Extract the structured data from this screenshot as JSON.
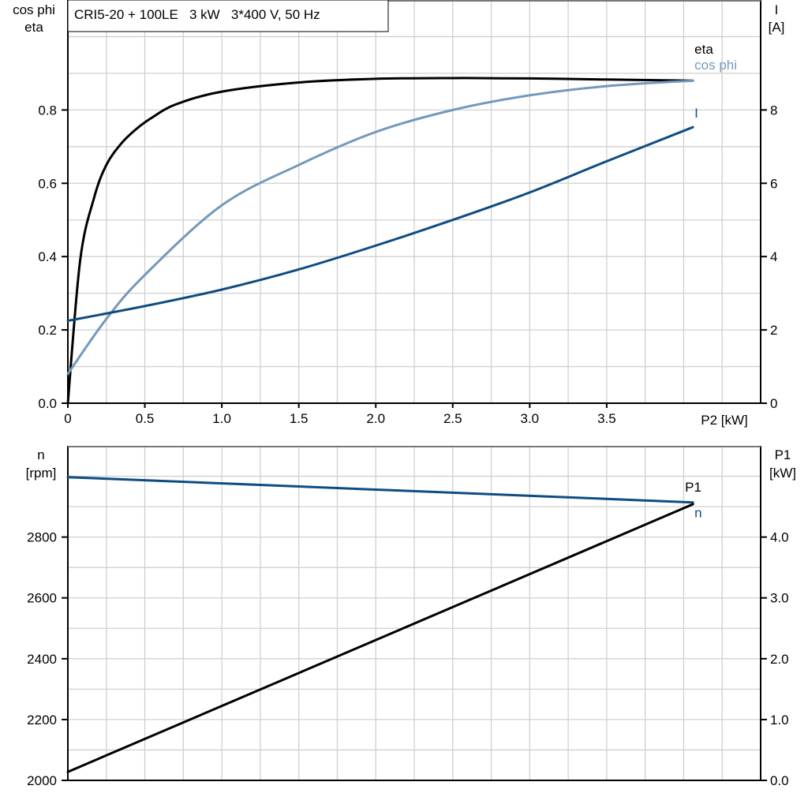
{
  "chart_data": [
    {
      "type": "line",
      "title": "CRI5-20 + 100LE   3 kW   3*400 V, 50 Hz",
      "xlabel": "P2 [kW]",
      "ylabel_left": [
        "cos phi",
        "eta"
      ],
      "ylabel_right": [
        "I",
        "[A]"
      ],
      "xlim": [
        0,
        4.5
      ],
      "ylim_left": [
        0,
        1.1
      ],
      "ylim_right": [
        0,
        11
      ],
      "xticks": [
        "0",
        "0.5",
        "1.0",
        "1.5",
        "2.0",
        "2.5",
        "3.0",
        "3.5"
      ],
      "yticks_left": [
        "0.0",
        "0.2",
        "0.4",
        "0.6",
        "0.8"
      ],
      "yticks_right": [
        "0",
        "2",
        "4",
        "6",
        "8"
      ],
      "grid": true,
      "series": [
        {
          "name": "eta",
          "axis": "left",
          "color": "#000000",
          "x": [
            0,
            0.08,
            0.17,
            0.25,
            0.35,
            0.45,
            0.55,
            0.7,
            1.0,
            1.5,
            2.0,
            2.5,
            3.0,
            3.5,
            4.06
          ],
          "y": [
            0,
            0.39,
            0.56,
            0.65,
            0.71,
            0.75,
            0.78,
            0.815,
            0.85,
            0.875,
            0.885,
            0.887,
            0.886,
            0.883,
            0.88
          ]
        },
        {
          "name": "cos phi",
          "axis": "left",
          "color": "#7399bb",
          "x": [
            0,
            0.25,
            0.5,
            1.0,
            1.5,
            2.0,
            2.5,
            3.0,
            3.5,
            4.06
          ],
          "y": [
            0.08,
            0.23,
            0.35,
            0.54,
            0.65,
            0.74,
            0.8,
            0.84,
            0.865,
            0.88
          ]
        },
        {
          "name": "I",
          "axis": "right",
          "color": "#0f4c81",
          "x": [
            0,
            0.5,
            1.0,
            1.5,
            2.0,
            2.5,
            3.0,
            3.5,
            4.06
          ],
          "y": [
            2.25,
            2.65,
            3.1,
            3.65,
            4.3,
            5.0,
            5.75,
            6.6,
            7.53
          ]
        }
      ]
    },
    {
      "type": "line",
      "xlim": [
        0,
        4.5
      ],
      "ylabel_left": [
        "n",
        "[rpm]"
      ],
      "ylabel_right": [
        "P1",
        "[kW]"
      ],
      "ylim_left": [
        2000,
        3100
      ],
      "ylim_right": [
        0,
        5.5
      ],
      "yticks_left": [
        "2000",
        "2200",
        "2400",
        "2600",
        "2800"
      ],
      "yticks_right": [
        "0.0",
        "1.0",
        "2.0",
        "3.0",
        "4.0"
      ],
      "grid": true,
      "series": [
        {
          "name": "n",
          "axis": "left",
          "color": "#0f4c81",
          "x": [
            0,
            4.06
          ],
          "y": [
            2997,
            2914
          ]
        },
        {
          "name": "P1",
          "axis": "right",
          "color": "#000000",
          "x": [
            0,
            4.06
          ],
          "y": [
            0.14,
            4.54
          ]
        }
      ]
    }
  ]
}
